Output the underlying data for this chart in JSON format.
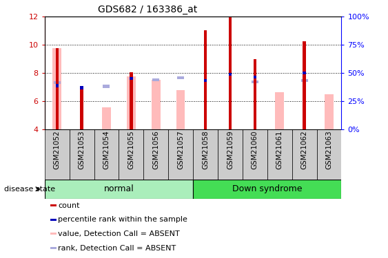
{
  "title": "GDS682 / 163386_at",
  "samples": [
    "GSM21052",
    "GSM21053",
    "GSM21054",
    "GSM21055",
    "GSM21056",
    "GSM21057",
    "GSM21058",
    "GSM21059",
    "GSM21060",
    "GSM21061",
    "GSM21062",
    "GSM21063"
  ],
  "count_values": [
    9.75,
    6.8,
    null,
    8.05,
    null,
    null,
    11.05,
    12.0,
    9.0,
    null,
    10.25,
    null
  ],
  "percentile_values": [
    7.1,
    6.95,
    null,
    7.6,
    null,
    null,
    7.45,
    7.9,
    7.7,
    null,
    8.0,
    null
  ],
  "absent_value_values": [
    9.75,
    null,
    5.55,
    7.75,
    7.5,
    6.75,
    null,
    null,
    null,
    6.6,
    null,
    6.5
  ],
  "absent_rank_values": [
    7.3,
    null,
    7.05,
    null,
    7.5,
    7.65,
    null,
    null,
    7.35,
    null,
    7.45,
    null
  ],
  "ylim": [
    4,
    12
  ],
  "yticks": [
    4,
    6,
    8,
    10,
    12
  ],
  "right_yticks": [
    0,
    25,
    50,
    75,
    100
  ],
  "right_yticklabels": [
    "0%",
    "25%",
    "50%",
    "75%",
    "100%"
  ],
  "count_color": "#cc0000",
  "percentile_color": "#0000bb",
  "absent_value_color": "#ffbbbb",
  "absent_rank_color": "#aaaadd",
  "normal_group_color": "#aaeebb",
  "down_group_color": "#44dd55",
  "gray_tick_bg": "#cccccc"
}
